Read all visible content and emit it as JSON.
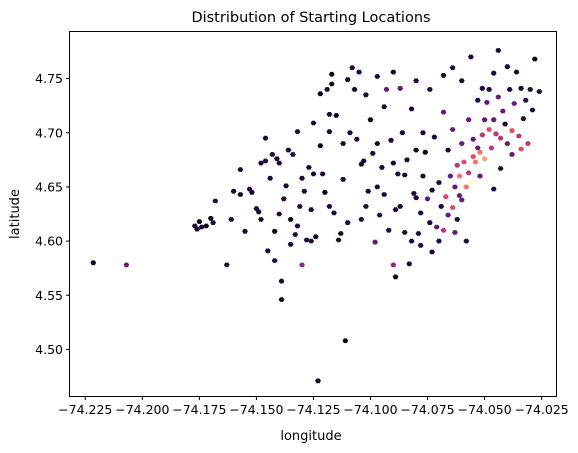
{
  "chart_data": {
    "type": "scatter",
    "title": "Distribution of Starting Locations",
    "xlabel": "longitude",
    "ylabel": "latitude",
    "xlim": [
      -74.2317,
      -74.0187
    ],
    "ylim": [
      4.457,
      4.793
    ],
    "x_ticks": [
      -74.225,
      -74.2,
      -74.175,
      -74.15,
      -74.125,
      -74.1,
      -74.075,
      -74.05,
      -74.025
    ],
    "x_tick_labels": [
      "−74.225",
      "−74.200",
      "−74.175",
      "−74.150",
      "−74.125",
      "−74.100",
      "−74.075",
      "−74.050",
      "−74.025"
    ],
    "y_ticks": [
      4.5,
      4.55,
      4.6,
      4.65,
      4.7,
      4.75
    ],
    "y_tick_labels": [
      "4.50",
      "4.55",
      "4.60",
      "4.65",
      "4.70",
      "4.75"
    ],
    "grid": false,
    "colormap": "inferno",
    "color_scale": {
      "low": "#000004",
      "low_mid": "#3b0f70",
      "mid": "#8c2981",
      "high_mid": "#de4968",
      "high": "#fe9f6d",
      "max": "#fcfdbf"
    },
    "points": [
      [
        -74.2215,
        4.58,
        0.05
      ],
      [
        -74.207,
        4.578,
        0.3
      ],
      [
        -74.177,
        4.614,
        0.1
      ],
      [
        -74.176,
        4.611,
        0.1
      ],
      [
        -74.175,
        4.618,
        0.05
      ],
      [
        -74.174,
        4.613,
        0.1
      ],
      [
        -74.172,
        4.614,
        0.05
      ],
      [
        -74.17,
        4.621,
        0.05
      ],
      [
        -74.169,
        4.617,
        0.1
      ],
      [
        -74.168,
        4.637,
        0.1
      ],
      [
        -74.163,
        4.578,
        0.1
      ],
      [
        -74.161,
        4.62,
        0.1
      ],
      [
        -74.157,
        4.643,
        0.05
      ],
      [
        -74.155,
        4.609,
        0.1
      ],
      [
        -74.153,
        4.648,
        0.1
      ],
      [
        -74.152,
        4.645,
        0.1
      ],
      [
        -74.15,
        4.63,
        0.1
      ],
      [
        -74.149,
        4.627,
        0.05
      ],
      [
        -74.148,
        4.672,
        0.1
      ],
      [
        -74.146,
        4.674,
        0.1
      ],
      [
        -74.145,
        4.591,
        0.1
      ],
      [
        -74.144,
        4.658,
        0.1
      ],
      [
        -74.143,
        4.68,
        0.1
      ],
      [
        -74.142,
        4.609,
        0.05
      ],
      [
        -74.141,
        4.676,
        0.1
      ],
      [
        -74.14,
        4.625,
        0.1
      ],
      [
        -74.139,
        4.563,
        0.1
      ],
      [
        -74.139,
        4.546,
        0.05
      ],
      [
        -74.138,
        4.639,
        0.1
      ],
      [
        -74.137,
        4.651,
        0.1
      ],
      [
        -74.136,
        4.684,
        0.1
      ],
      [
        -74.135,
        4.62,
        0.05
      ],
      [
        -74.134,
        4.68,
        0.1
      ],
      [
        -74.133,
        4.606,
        0.1
      ],
      [
        -74.132,
        4.614,
        0.1
      ],
      [
        -74.131,
        4.632,
        0.1
      ],
      [
        -74.13,
        4.578,
        0.4
      ],
      [
        -74.13,
        4.658,
        0.1
      ],
      [
        -74.129,
        4.646,
        0.1
      ],
      [
        -74.128,
        4.601,
        0.1
      ],
      [
        -74.127,
        4.668,
        0.1
      ],
      [
        -74.126,
        4.629,
        0.1
      ],
      [
        -74.125,
        4.662,
        0.1
      ],
      [
        -74.124,
        4.604,
        0.05
      ],
      [
        -74.123,
        4.471,
        0.05
      ],
      [
        -74.122,
        4.736,
        0.05
      ],
      [
        -74.122,
        4.688,
        0.05
      ],
      [
        -74.121,
        4.662,
        0.1
      ],
      [
        -74.12,
        4.645,
        0.05
      ],
      [
        -74.119,
        4.74,
        0.1
      ],
      [
        -74.118,
        4.701,
        0.1
      ],
      [
        -74.117,
        4.745,
        0.05
      ],
      [
        -74.117,
        4.754,
        0.05
      ],
      [
        -74.116,
        4.626,
        0.1
      ],
      [
        -74.115,
        4.716,
        0.05
      ],
      [
        -74.114,
        4.601,
        0.1
      ],
      [
        -74.113,
        4.607,
        0.05
      ],
      [
        -74.112,
        4.657,
        0.1
      ],
      [
        -74.111,
        4.508,
        0.05
      ],
      [
        -74.11,
        4.749,
        0.1
      ],
      [
        -74.109,
        4.7,
        0.1
      ],
      [
        -74.108,
        4.76,
        0.1
      ],
      [
        -74.107,
        4.74,
        0.05
      ],
      [
        -74.106,
        4.694,
        0.1
      ],
      [
        -74.105,
        4.756,
        0.1
      ],
      [
        -74.104,
        4.62,
        0.1
      ],
      [
        -74.103,
        4.674,
        0.1
      ],
      [
        -74.102,
        4.735,
        0.1
      ],
      [
        -74.101,
        4.646,
        0.1
      ],
      [
        -74.1,
        4.712,
        0.05
      ],
      [
        -74.099,
        4.681,
        0.1
      ],
      [
        -74.098,
        4.599,
        0.3
      ],
      [
        -74.097,
        4.65,
        0.1
      ],
      [
        -74.097,
        4.752,
        0.1
      ],
      [
        -74.096,
        4.624,
        0.1
      ],
      [
        -74.095,
        4.668,
        0.1
      ],
      [
        -74.094,
        4.724,
        0.1
      ],
      [
        -74.093,
        4.74,
        0.3
      ],
      [
        -74.092,
        4.61,
        0.1
      ],
      [
        -74.091,
        4.693,
        0.1
      ],
      [
        -74.09,
        4.756,
        0.05
      ],
      [
        -74.09,
        4.578,
        0.4
      ],
      [
        -74.089,
        4.629,
        0.1
      ],
      [
        -74.089,
        4.567,
        0.05
      ],
      [
        -74.088,
        4.662,
        0.1
      ],
      [
        -74.087,
        4.741,
        0.3
      ],
      [
        -74.086,
        4.7,
        0.1
      ],
      [
        -74.085,
        4.608,
        0.1
      ],
      [
        -74.084,
        4.675,
        0.1
      ],
      [
        -74.083,
        4.579,
        0.1
      ],
      [
        -74.082,
        4.722,
        0.1
      ],
      [
        -74.081,
        4.644,
        0.1
      ],
      [
        -74.08,
        4.684,
        0.05
      ],
      [
        -74.079,
        4.607,
        0.1
      ],
      [
        -74.078,
        4.626,
        0.1
      ],
      [
        -74.077,
        4.66,
        0.1
      ],
      [
        -74.077,
        4.7,
        0.1
      ],
      [
        -74.076,
        4.682,
        0.05
      ],
      [
        -74.075,
        4.639,
        0.3
      ],
      [
        -74.074,
        4.617,
        0.1
      ],
      [
        -74.073,
        4.647,
        0.1
      ],
      [
        -74.072,
        4.696,
        0.1
      ],
      [
        -74.071,
        4.613,
        0.3
      ],
      [
        -74.07,
        4.654,
        0.1
      ],
      [
        -74.069,
        4.632,
        0.1
      ],
      [
        -74.068,
        4.719,
        0.3
      ],
      [
        -74.068,
        4.61,
        0.5
      ],
      [
        -74.067,
        4.641,
        0.6
      ],
      [
        -74.066,
        4.684,
        0.1
      ],
      [
        -74.066,
        4.624,
        0.3
      ],
      [
        -74.065,
        4.66,
        0.3
      ],
      [
        -74.064,
        4.703,
        0.3
      ],
      [
        -74.064,
        4.631,
        0.6
      ],
      [
        -74.063,
        4.65,
        0.3
      ],
      [
        -74.062,
        4.67,
        0.5
      ],
      [
        -74.062,
        4.62,
        0.1
      ],
      [
        -74.061,
        4.642,
        0.3
      ],
      [
        -74.061,
        4.66,
        0.7
      ],
      [
        -74.06,
        4.69,
        0.3
      ],
      [
        -74.06,
        4.638,
        0.3
      ],
      [
        -74.059,
        4.673,
        0.6
      ],
      [
        -74.058,
        4.65,
        0.7
      ],
      [
        -74.057,
        4.712,
        0.3
      ],
      [
        -74.057,
        4.663,
        0.5
      ],
      [
        -74.056,
        4.655,
        1.0
      ],
      [
        -74.055,
        4.678,
        0.6
      ],
      [
        -74.055,
        4.694,
        0.3
      ],
      [
        -74.054,
        4.673,
        0.7
      ],
      [
        -74.053,
        4.686,
        0.3
      ],
      [
        -74.053,
        4.73,
        0.1
      ],
      [
        -74.052,
        4.682,
        0.7
      ],
      [
        -74.051,
        4.741,
        0.1
      ],
      [
        -74.051,
        4.698,
        0.5
      ],
      [
        -74.05,
        4.676,
        0.8
      ],
      [
        -74.05,
        4.712,
        0.3
      ],
      [
        -74.049,
        4.728,
        0.3
      ],
      [
        -74.048,
        4.703,
        0.6
      ],
      [
        -74.048,
        4.74,
        0.1
      ],
      [
        -74.047,
        4.686,
        0.5
      ],
      [
        -74.046,
        4.755,
        0.1
      ],
      [
        -74.046,
        4.712,
        0.3
      ],
      [
        -74.045,
        4.699,
        0.5
      ],
      [
        -74.044,
        4.776,
        0.1
      ],
      [
        -74.044,
        4.733,
        0.3
      ],
      [
        -74.043,
        4.695,
        0.5
      ],
      [
        -74.042,
        4.72,
        0.3
      ],
      [
        -74.041,
        4.708,
        0.1
      ],
      [
        -74.04,
        4.761,
        0.1
      ],
      [
        -74.04,
        4.69,
        0.3
      ],
      [
        -74.039,
        4.74,
        0.1
      ],
      [
        -74.038,
        4.702,
        0.6
      ],
      [
        -74.037,
        4.727,
        0.3
      ],
      [
        -74.036,
        4.756,
        0.1
      ],
      [
        -74.035,
        4.697,
        0.5
      ],
      [
        -74.034,
        4.741,
        0.1
      ],
      [
        -74.033,
        4.713,
        0.1
      ],
      [
        -74.032,
        4.73,
        0.1
      ],
      [
        -74.03,
        4.74,
        0.1
      ],
      [
        -74.029,
        4.721,
        0.1
      ],
      [
        -74.028,
        4.768,
        0.05
      ],
      [
        -74.026,
        4.738,
        0.1
      ],
      [
        -74.058,
        4.6,
        0.1
      ],
      [
        -74.063,
        4.608,
        0.3
      ],
      [
        -74.07,
        4.6,
        0.1
      ],
      [
        -74.073,
        4.59,
        0.1
      ],
      [
        -74.078,
        4.596,
        0.1
      ],
      [
        -74.082,
        4.6,
        0.1
      ],
      [
        -74.046,
        4.648,
        0.1
      ],
      [
        -74.043,
        4.667,
        0.1
      ],
      [
        -74.052,
        4.66,
        0.3
      ],
      [
        -74.038,
        4.68,
        0.3
      ],
      [
        -74.034,
        4.685,
        0.6
      ],
      [
        -74.031,
        4.69,
        0.5
      ],
      [
        -74.074,
        4.74,
        0.1
      ],
      [
        -74.08,
        4.748,
        0.1
      ],
      [
        -74.06,
        4.748,
        0.1
      ],
      [
        -74.056,
        4.77,
        0.1
      ],
      [
        -74.064,
        4.76,
        0.1
      ],
      [
        -74.068,
        4.753,
        0.1
      ],
      [
        -74.157,
        4.666,
        0.1
      ],
      [
        -74.146,
        4.695,
        0.1
      ],
      [
        -74.14,
        4.672,
        0.1
      ],
      [
        -74.132,
        4.701,
        0.1
      ],
      [
        -74.125,
        4.709,
        0.1
      ],
      [
        -74.118,
        4.717,
        0.1
      ],
      [
        -74.112,
        4.69,
        0.1
      ],
      [
        -74.104,
        4.671,
        0.1
      ],
      [
        -74.097,
        4.69,
        0.1
      ],
      [
        -74.09,
        4.672,
        0.1
      ],
      [
        -74.085,
        4.661,
        0.1
      ],
      [
        -74.08,
        4.64,
        0.1
      ],
      [
        -74.087,
        4.632,
        0.1
      ],
      [
        -74.094,
        4.643,
        0.1
      ],
      [
        -74.102,
        4.632,
        0.1
      ],
      [
        -74.11,
        4.617,
        0.1
      ],
      [
        -74.118,
        4.632,
        0.1
      ],
      [
        -74.126,
        4.6,
        0.1
      ],
      [
        -74.135,
        4.597,
        0.1
      ],
      [
        -74.142,
        4.582,
        0.1
      ],
      [
        -74.148,
        4.62,
        0.1
      ],
      [
        -74.16,
        4.646,
        0.1
      ]
    ]
  }
}
